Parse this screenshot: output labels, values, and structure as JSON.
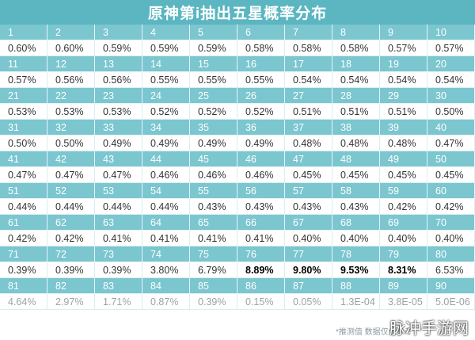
{
  "title": "原神第i抽出五星概率分布",
  "rows": [
    {
      "indices": [
        "1",
        "2",
        "3",
        "4",
        "5",
        "6",
        "7",
        "8",
        "9",
        "10"
      ],
      "values": [
        "0.60%",
        "0.60%",
        "0.59%",
        "0.59%",
        "0.59%",
        "0.58%",
        "0.58%",
        "0.58%",
        "0.57%",
        "0.57%"
      ]
    },
    {
      "indices": [
        "11",
        "12",
        "13",
        "14",
        "15",
        "16",
        "17",
        "18",
        "19",
        "20"
      ],
      "values": [
        "0.57%",
        "0.56%",
        "0.56%",
        "0.55%",
        "0.55%",
        "0.55%",
        "0.54%",
        "0.54%",
        "0.54%",
        "0.54%"
      ]
    },
    {
      "indices": [
        "21",
        "22",
        "23",
        "24",
        "25",
        "26",
        "27",
        "28",
        "29",
        "30"
      ],
      "values": [
        "0.53%",
        "0.53%",
        "0.53%",
        "0.52%",
        "0.52%",
        "0.52%",
        "0.51%",
        "0.51%",
        "0.51%",
        "0.50%"
      ]
    },
    {
      "indices": [
        "31",
        "32",
        "33",
        "34",
        "35",
        "36",
        "37",
        "38",
        "39",
        "40"
      ],
      "values": [
        "0.50%",
        "0.50%",
        "0.49%",
        "0.49%",
        "0.49%",
        "0.49%",
        "0.48%",
        "0.48%",
        "0.48%",
        "0.47%"
      ]
    },
    {
      "indices": [
        "41",
        "42",
        "43",
        "44",
        "45",
        "46",
        "47",
        "48",
        "49",
        "50"
      ],
      "values": [
        "0.47%",
        "0.47%",
        "0.47%",
        "0.46%",
        "0.46%",
        "0.46%",
        "0.45%",
        "0.45%",
        "0.45%",
        "0.45%"
      ]
    },
    {
      "indices": [
        "51",
        "52",
        "53",
        "54",
        "55",
        "56",
        "57",
        "58",
        "59",
        "60"
      ],
      "values": [
        "0.44%",
        "0.44%",
        "0.44%",
        "0.44%",
        "0.43%",
        "0.43%",
        "0.43%",
        "0.43%",
        "0.42%",
        "0.42%"
      ]
    },
    {
      "indices": [
        "61",
        "62",
        "63",
        "64",
        "65",
        "66",
        "67",
        "68",
        "69",
        "70"
      ],
      "values": [
        "0.42%",
        "0.42%",
        "0.41%",
        "0.41%",
        "0.41%",
        "0.41%",
        "0.40%",
        "0.40%",
        "0.40%",
        "0.40%"
      ]
    },
    {
      "indices": [
        "71",
        "72",
        "73",
        "74",
        "75",
        "76",
        "77",
        "78",
        "79",
        "80"
      ],
      "values": [
        "0.39%",
        "0.39%",
        "0.39%",
        "3.80%",
        "6.79%",
        "8.89%",
        "9.80%",
        "9.53%",
        "8.31%",
        "6.53%"
      ],
      "bold": [
        false,
        false,
        false,
        false,
        false,
        true,
        true,
        true,
        true,
        false
      ]
    },
    {
      "indices": [
        "81",
        "82",
        "83",
        "84",
        "85",
        "86",
        "87",
        "88",
        "89",
        "90"
      ],
      "values": [
        "4.64%",
        "2.97%",
        "1.71%",
        "0.87%",
        "0.39%",
        "0.15%",
        "0.05%",
        "1.3E-04",
        "3.8E-05",
        "5.0E-06"
      ],
      "faded": true
    }
  ],
  "note": "*推测值 数据仅供参考",
  "watermark": "脉冲手游网"
}
